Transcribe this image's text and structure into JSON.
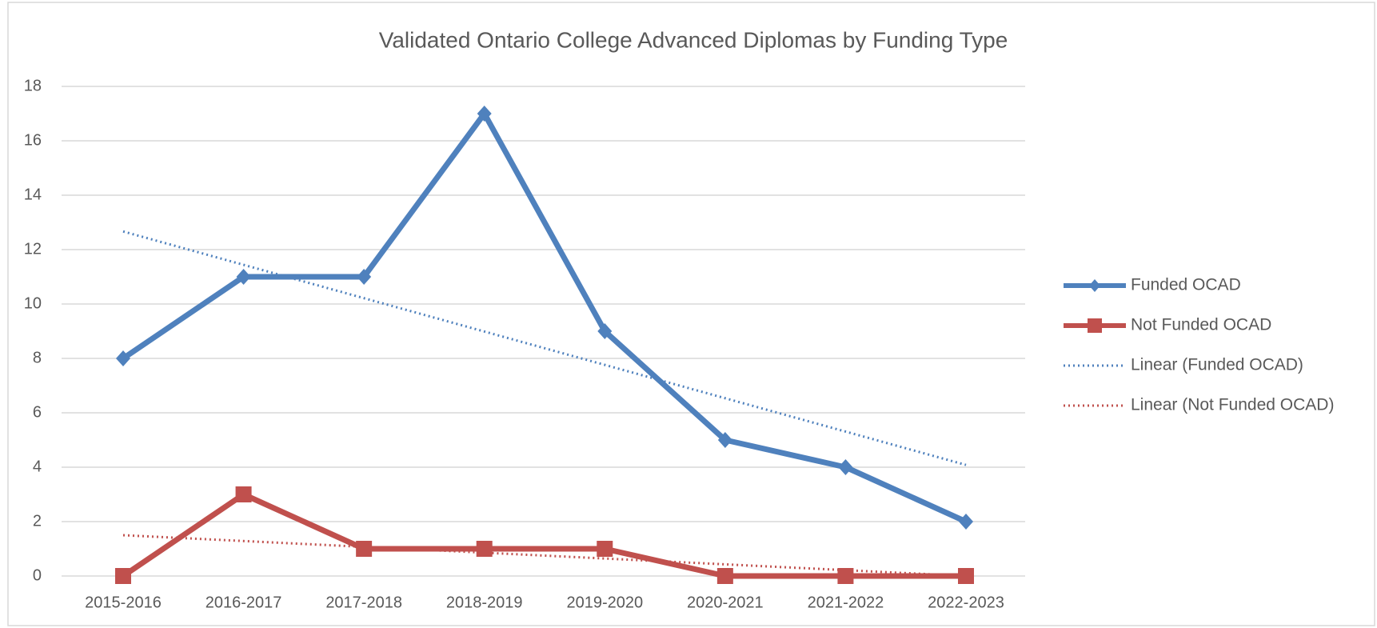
{
  "chart_data": {
    "type": "line",
    "title": "Validated Ontario College Advanced Diplomas by Funding Type",
    "categories": [
      "2015-2016",
      "2016-2017",
      "2017-2018",
      "2018-2019",
      "2019-2020",
      "2020-2021",
      "2021-2022",
      "2022-2023"
    ],
    "series": [
      {
        "name": "Funded OCAD",
        "color": "#4f81bd",
        "marker": "diamond",
        "values": [
          8,
          11,
          11,
          17,
          9,
          5,
          4,
          2
        ]
      },
      {
        "name": "Not Funded OCAD",
        "color": "#c0504d",
        "marker": "square",
        "values": [
          0,
          3,
          1,
          1,
          1,
          0,
          0,
          0
        ]
      }
    ],
    "trendlines": [
      {
        "name": "Linear (Funded OCAD)",
        "type": "linear",
        "series": 0,
        "color": "#4f81bd"
      },
      {
        "name": "Linear (Not Funded OCAD)",
        "type": "linear",
        "series": 1,
        "color": "#c0504d"
      }
    ],
    "ylim": [
      0,
      18
    ],
    "yticks": [
      0,
      2,
      4,
      6,
      8,
      10,
      12,
      14,
      16,
      18
    ],
    "grid": true,
    "legend": "right"
  }
}
